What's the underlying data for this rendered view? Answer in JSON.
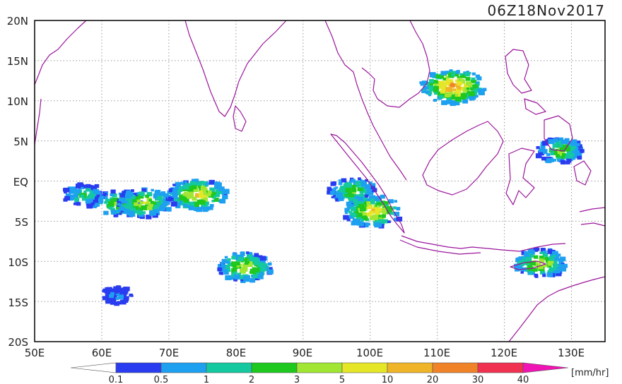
{
  "map": {
    "timestamp": "06Z18Nov2017",
    "lat_labels": [
      "20N",
      "15N",
      "10N",
      "5N",
      "EQ",
      "5S",
      "10S",
      "15S",
      "20S"
    ],
    "lon_labels": [
      "50E",
      "60E",
      "70E",
      "80E",
      "90E",
      "100E",
      "110E",
      "120E",
      "130E"
    ],
    "extent": {
      "lon_min": 50,
      "lon_max": 135,
      "lat_min": -20,
      "lat_max": 20
    },
    "grid": "dotted, 10° lon / 5° lat",
    "coastline_color": "#9b169b",
    "precip_cells": [
      {
        "area": "central Indian Ocean",
        "lon": 57,
        "lat": -1.5,
        "level": 4
      },
      {
        "area": "central Indian Ocean",
        "lon": 62,
        "lat": -2.5,
        "level": 5
      },
      {
        "area": "central Indian Ocean",
        "lon": 66,
        "lat": -2.5,
        "level": 6
      },
      {
        "area": "central Indian Ocean",
        "lon": 74,
        "lat": -1.5,
        "level": 7
      },
      {
        "area": "Indian Ocean 10S",
        "lon": 81,
        "lat": -10.5,
        "level": 6
      },
      {
        "area": "west Sumatra",
        "lon": 97,
        "lat": -1,
        "level": 5
      },
      {
        "area": "Sumatra",
        "lon": 100,
        "lat": -3.5,
        "level": 7
      },
      {
        "area": "South China Sea",
        "lon": 112,
        "lat": 12,
        "level": 8
      },
      {
        "area": "Philippines",
        "lon": 128,
        "lat": 4,
        "level": 5
      },
      {
        "area": "Timor Sea",
        "lon": 125,
        "lat": -10,
        "level": 6
      },
      {
        "area": "Indian Ocean 15S",
        "lon": 62,
        "lat": -14,
        "level": 2
      }
    ]
  },
  "colorbar": {
    "ticks": [
      "0.1",
      "0.5",
      "1",
      "2",
      "3",
      "5",
      "10",
      "20",
      "30",
      "40"
    ],
    "colors": [
      "#ffffff",
      "#2a3cf0",
      "#1ea0f0",
      "#14c8a0",
      "#1ec81e",
      "#a0e632",
      "#e6e628",
      "#f0b428",
      "#f08228",
      "#f03250",
      "#f014b4"
    ],
    "unit": "[mm/hr]"
  }
}
